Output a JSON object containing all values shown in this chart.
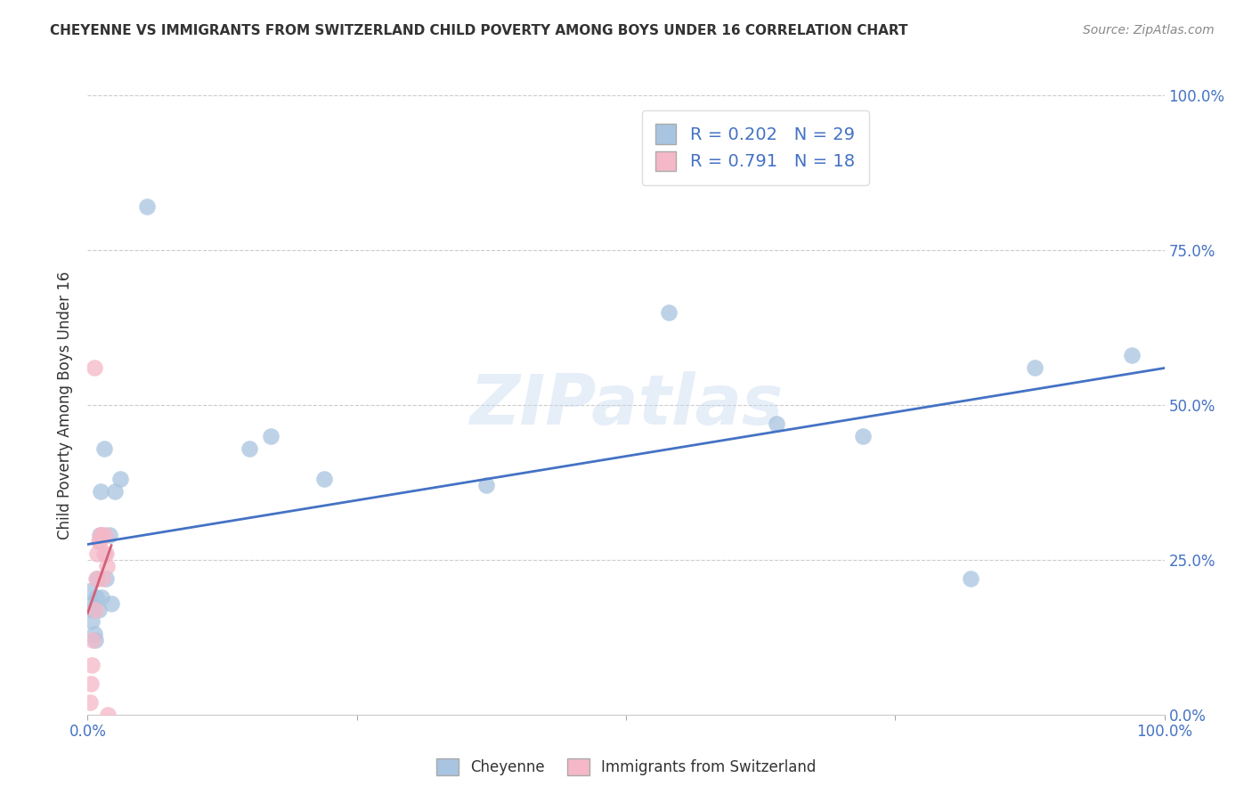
{
  "title": "CHEYENNE VS IMMIGRANTS FROM SWITZERLAND CHILD POVERTY AMONG BOYS UNDER 16 CORRELATION CHART",
  "source": "Source: ZipAtlas.com",
  "ylabel": "Child Poverty Among Boys Under 16",
  "ytick_labels": [
    "0.0%",
    "25.0%",
    "50.0%",
    "75.0%",
    "100.0%"
  ],
  "ytick_values": [
    0.0,
    0.25,
    0.5,
    0.75,
    1.0
  ],
  "legend_label1": "R = 0.202   N = 29",
  "legend_label2": "R = 0.791   N = 18",
  "legend_bottom1": "Cheyenne",
  "legend_bottom2": "Immigrants from Switzerland",
  "cheyenne_color": "#a8c4e0",
  "switzerland_color": "#f4b8c8",
  "cheyenne_line_color": "#4472c4",
  "switzerland_line_color": "#d4607a",
  "cheyenne_R": 0.202,
  "cheyenne_N": 29,
  "switzerland_R": 0.791,
  "switzerland_N": 18,
  "cheyenne_x": [
    0.001,
    0.003,
    0.004,
    0.005,
    0.006,
    0.007,
    0.008,
    0.009,
    0.01,
    0.011,
    0.012,
    0.013,
    0.015,
    0.017,
    0.02,
    0.022,
    0.025,
    0.03,
    0.055,
    0.15,
    0.17,
    0.22,
    0.37,
    0.54,
    0.64,
    0.72,
    0.82,
    0.88,
    0.97
  ],
  "cheyenne_y": [
    0.2,
    0.18,
    0.15,
    0.17,
    0.13,
    0.12,
    0.19,
    0.22,
    0.17,
    0.29,
    0.36,
    0.19,
    0.43,
    0.22,
    0.29,
    0.18,
    0.36,
    0.38,
    0.82,
    0.43,
    0.45,
    0.38,
    0.37,
    0.65,
    0.47,
    0.45,
    0.22,
    0.56,
    0.58
  ],
  "switzerland_x": [
    0.002,
    0.003,
    0.004,
    0.005,
    0.006,
    0.007,
    0.008,
    0.009,
    0.01,
    0.011,
    0.012,
    0.013,
    0.014,
    0.015,
    0.016,
    0.017,
    0.018,
    0.019
  ],
  "switzerland_y": [
    0.02,
    0.05,
    0.08,
    0.12,
    0.56,
    0.17,
    0.22,
    0.26,
    0.28,
    0.28,
    0.29,
    0.29,
    0.22,
    0.26,
    0.29,
    0.26,
    0.24,
    0.0
  ],
  "watermark": "ZIPatlas",
  "background_color": "#ffffff",
  "grid_color": "#cccccc"
}
